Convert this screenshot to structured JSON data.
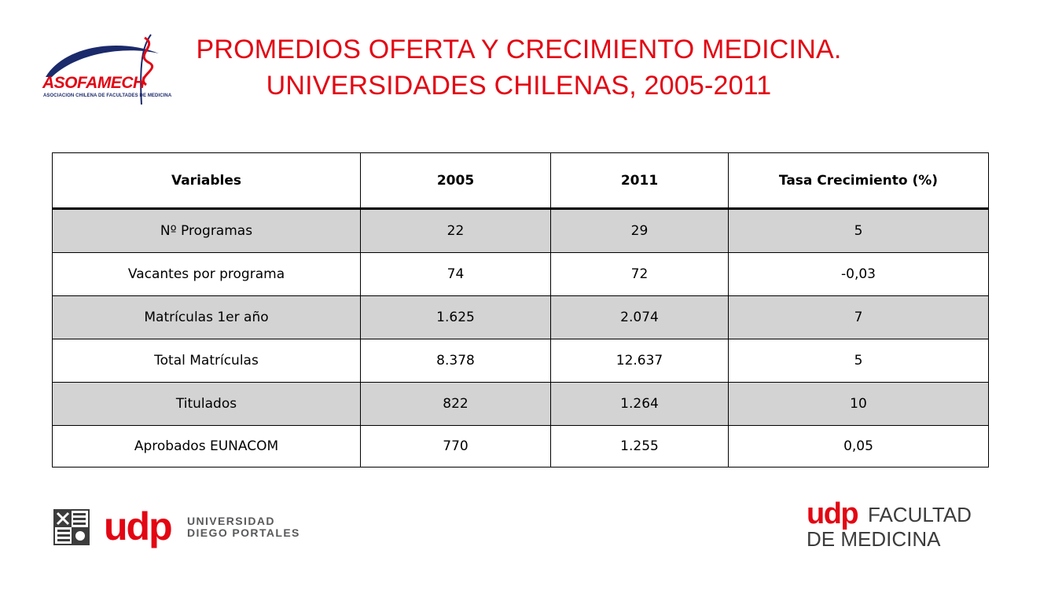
{
  "title": {
    "line1": "PROMEDIOS OFERTA Y CRECIMIENTO MEDICINA.",
    "line2": "UNIVERSIDADES CHILENAS, 2005-2011"
  },
  "logos": {
    "asofamech_name": "ASOFAMECH",
    "asofamech_sub": "ASOCIACION CHILENA DE FACULTADES DE MEDICINA",
    "udp_left_mark": "udp",
    "udp_left_line1": "UNIVERSIDAD",
    "udp_left_line2": "DIEGO PORTALES",
    "udp_right_mark": "udp",
    "udp_right_line1": "FACULTAD",
    "udp_right_line2": "DE MEDICINA"
  },
  "colors": {
    "title": "#e30613",
    "shaded_row": "#d3d3d3",
    "brand_red": "#e30613",
    "brand_navy": "#1b2a6b"
  },
  "table": {
    "headers": [
      "Variables",
      "2005",
      "2011",
      "Tasa Crecimiento (%)"
    ],
    "rows": [
      [
        "Nº Programas",
        "22",
        "29",
        "5"
      ],
      [
        "Vacantes por programa",
        "74",
        "72",
        "-0,03"
      ],
      [
        "Matrículas 1er año",
        "1.625",
        "2.074",
        "7"
      ],
      [
        "Total Matrículas",
        "8.378",
        "12.637",
        "5"
      ],
      [
        "Titulados",
        "822",
        "1.264",
        "10"
      ],
      [
        "Aprobados EUNACOM",
        "770",
        "1.255",
        "0,05"
      ]
    ]
  }
}
